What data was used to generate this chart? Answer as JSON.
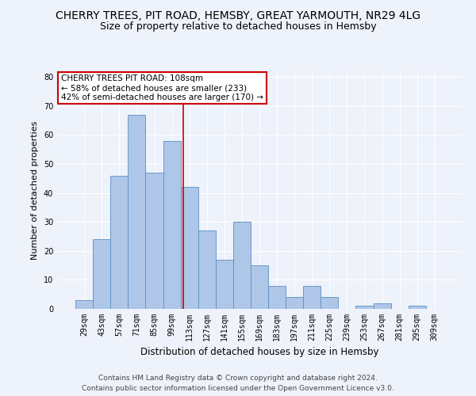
{
  "title": "CHERRY TREES, PIT ROAD, HEMSBY, GREAT YARMOUTH, NR29 4LG",
  "subtitle": "Size of property relative to detached houses in Hemsby",
  "xlabel": "Distribution of detached houses by size in Hemsby",
  "ylabel": "Number of detached properties",
  "categories": [
    "29sqm",
    "43sqm",
    "57sqm",
    "71sqm",
    "85sqm",
    "99sqm",
    "113sqm",
    "127sqm",
    "141sqm",
    "155sqm",
    "169sqm",
    "183sqm",
    "197sqm",
    "211sqm",
    "225sqm",
    "239sqm",
    "253sqm",
    "267sqm",
    "281sqm",
    "295sqm",
    "309sqm"
  ],
  "values": [
    3,
    24,
    46,
    67,
    47,
    58,
    42,
    27,
    17,
    30,
    15,
    8,
    4,
    8,
    4,
    0,
    1,
    2,
    0,
    1,
    0
  ],
  "bar_color": "#aec6e8",
  "bar_edge_color": "#5a8fc2",
  "annotation_text_line1": "CHERRY TREES PIT ROAD: 108sqm",
  "annotation_text_line2": "← 58% of detached houses are smaller (233)",
  "annotation_text_line3": "42% of semi-detached houses are larger (170) →",
  "annotation_box_color": "#ffffff",
  "annotation_box_edge": "#cc0000",
  "vline_color": "#cc0000",
  "ylim": [
    0,
    82
  ],
  "yticks": [
    0,
    10,
    20,
    30,
    40,
    50,
    60,
    70,
    80
  ],
  "footer_line1": "Contains HM Land Registry data © Crown copyright and database right 2024.",
  "footer_line2": "Contains public sector information licensed under the Open Government Licence v3.0.",
  "title_fontsize": 10,
  "subtitle_fontsize": 9,
  "xlabel_fontsize": 8.5,
  "ylabel_fontsize": 8,
  "tick_fontsize": 7,
  "annotation_fontsize": 7.5,
  "footer_fontsize": 6.5,
  "background_color": "#eef2fb",
  "grid_color": "#ffffff"
}
